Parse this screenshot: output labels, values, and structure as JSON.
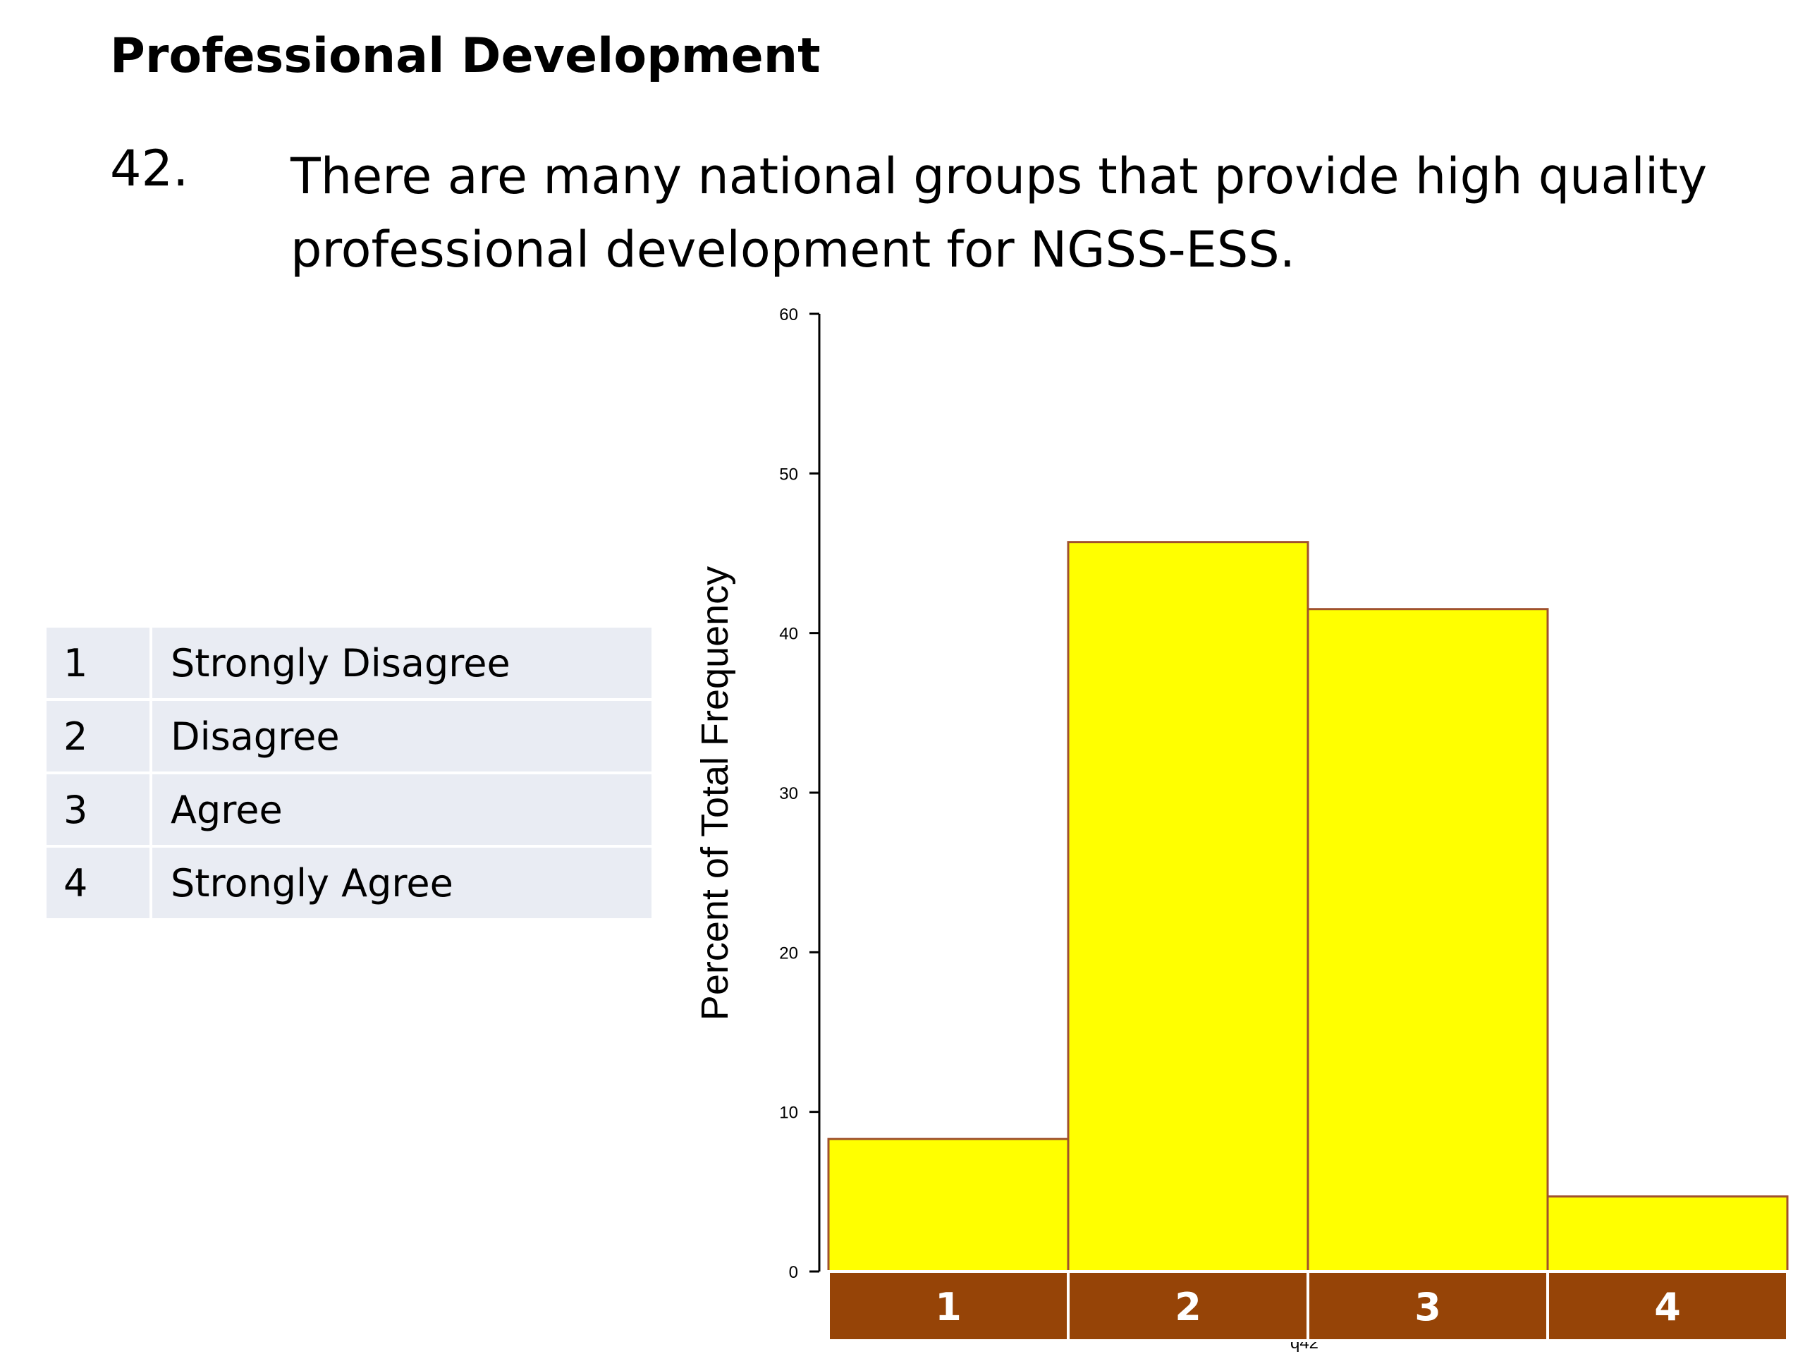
{
  "slide": {
    "heading": "Professional Development",
    "question_number": "42.",
    "question_text": "There are many national groups that provide high quality professional development for NGSS-ESS."
  },
  "legend": {
    "rows": [
      {
        "code": "1",
        "label": "Strongly Disagree"
      },
      {
        "code": "2",
        "label": "Disagree"
      },
      {
        "code": "3",
        "label": "Agree"
      },
      {
        "code": "4",
        "label": "Strongly Agree"
      }
    ]
  },
  "chart_data": {
    "type": "bar",
    "title": "",
    "xlabel": "q42",
    "ylabel": "Percent of Total Frequency",
    "categories": [
      "1",
      "2",
      "3",
      "4"
    ],
    "values": [
      8.3,
      45.7,
      41.5,
      4.7
    ],
    "ylim": [
      0,
      60
    ],
    "yticks": [
      0,
      10,
      20,
      30,
      40,
      50,
      60
    ],
    "grid": false,
    "colors": {
      "bar_fill": "#ffff00",
      "bar_stroke": "#a0522d",
      "category_band": "#964407",
      "category_text": "#ffffff"
    }
  }
}
